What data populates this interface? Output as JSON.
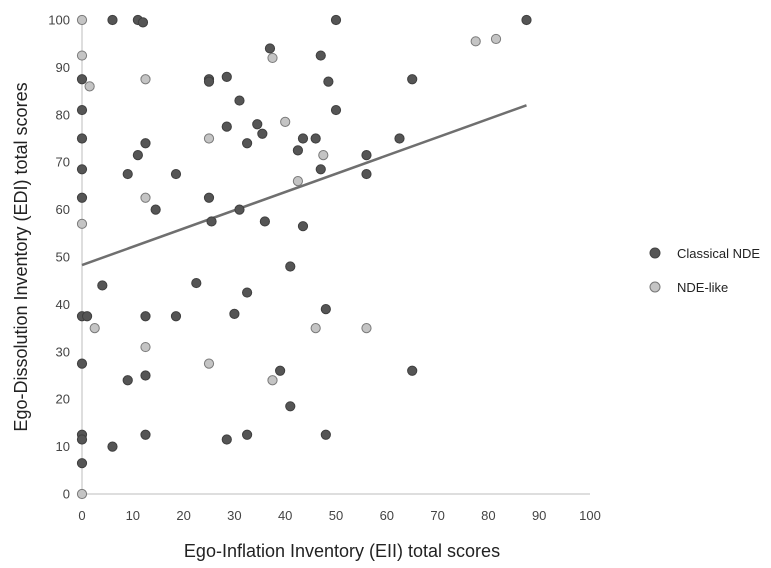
{
  "chart_data": {
    "type": "scatter",
    "title": "",
    "xlabel": "Ego-Inflation Inventory (EII) total scores",
    "ylabel": "Ego-Dissolution Inventory (EDI) total scores",
    "xlim": [
      0,
      100
    ],
    "ylim": [
      0,
      100
    ],
    "x_ticks": [
      "0",
      "10",
      "20",
      "30",
      "40",
      "50",
      "60",
      "70",
      "80",
      "90",
      "100"
    ],
    "y_ticks": [
      "0",
      "10",
      "20",
      "30",
      "40",
      "50",
      "60",
      "70",
      "80",
      "90",
      "100"
    ],
    "grid": "off",
    "legend_position": "right",
    "series": [
      {
        "name": "Classical NDE",
        "color": "#555555",
        "points": [
          [
            6,
            100
          ],
          [
            11,
            100
          ],
          [
            12,
            99.5
          ],
          [
            50,
            100
          ],
          [
            87.5,
            100
          ],
          [
            37,
            94
          ],
          [
            47,
            92.5
          ],
          [
            0,
            87.5
          ],
          [
            25,
            87.5
          ],
          [
            25,
            87
          ],
          [
            28.5,
            88
          ],
          [
            48.5,
            87
          ],
          [
            65,
            87.5
          ],
          [
            0,
            81
          ],
          [
            31,
            83
          ],
          [
            50,
            81
          ],
          [
            28.5,
            77.5
          ],
          [
            34.5,
            78
          ],
          [
            35.5,
            76
          ],
          [
            43.5,
            75
          ],
          [
            46,
            75
          ],
          [
            62.5,
            75
          ],
          [
            0,
            75
          ],
          [
            12.5,
            74
          ],
          [
            32.5,
            74
          ],
          [
            42.5,
            72.5
          ],
          [
            11,
            71.5
          ],
          [
            56,
            71.5
          ],
          [
            0,
            68.5
          ],
          [
            9,
            67.5
          ],
          [
            18.5,
            67.5
          ],
          [
            47,
            68.5
          ],
          [
            56,
            67.5
          ],
          [
            0,
            62.5
          ],
          [
            25,
            62.5
          ],
          [
            14.5,
            60
          ],
          [
            31,
            60
          ],
          [
            25.5,
            57.5
          ],
          [
            36,
            57.5
          ],
          [
            43.5,
            56.5
          ],
          [
            41,
            48
          ],
          [
            22.5,
            44.5
          ],
          [
            4,
            44
          ],
          [
            32.5,
            42.5
          ],
          [
            0,
            37.5
          ],
          [
            1,
            37.5
          ],
          [
            12.5,
            37.5
          ],
          [
            18.5,
            37.5
          ],
          [
            30,
            38
          ],
          [
            48,
            39
          ],
          [
            0,
            27.5
          ],
          [
            39,
            26
          ],
          [
            65,
            26
          ],
          [
            12.5,
            25
          ],
          [
            9,
            24
          ],
          [
            41,
            18.5
          ],
          [
            0,
            12.5
          ],
          [
            12.5,
            12.5
          ],
          [
            32.5,
            12.5
          ],
          [
            48,
            12.5
          ],
          [
            0,
            11.5
          ],
          [
            28.5,
            11.5
          ],
          [
            6,
            10
          ],
          [
            0,
            6.5
          ]
        ]
      },
      {
        "name": "NDE-like",
        "color": "#c4c4c4",
        "points": [
          [
            0,
            100
          ],
          [
            0,
            92.5
          ],
          [
            37.5,
            92
          ],
          [
            77.5,
            95.5
          ],
          [
            81.5,
            96
          ],
          [
            1.5,
            86
          ],
          [
            12.5,
            87.5
          ],
          [
            40,
            78.5
          ],
          [
            25,
            75
          ],
          [
            47.5,
            71.5
          ],
          [
            42.5,
            66
          ],
          [
            12.5,
            62.5
          ],
          [
            0,
            57
          ],
          [
            2.5,
            35
          ],
          [
            12.5,
            31
          ],
          [
            46,
            35
          ],
          [
            56,
            35
          ],
          [
            25,
            27.5
          ],
          [
            37.5,
            24
          ],
          [
            0,
            0
          ]
        ]
      }
    ],
    "trendline": {
      "type": "linear",
      "color": "#6f6f6f",
      "x": [
        0,
        87.5
      ],
      "y": [
        48.3,
        82
      ]
    }
  }
}
